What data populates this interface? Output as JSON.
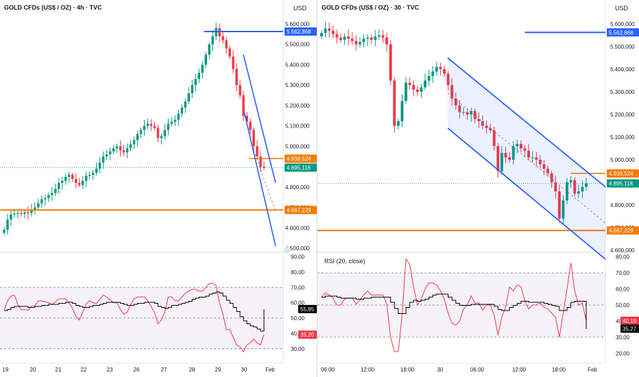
{
  "charts": [
    {
      "title": "GOLD CFDs (US$ / OZ) · 4h · TVC",
      "currency": "USD",
      "price_ticks": [
        "5.600,000",
        "5.500,000",
        "5.400,000",
        "5.300,000",
        "5.200,000",
        "5.100,000",
        "5.000,000",
        "4.900,000",
        "4.800,000",
        "4.700,000",
        "4.600,000",
        "4.500,000"
      ],
      "rsi_ticks": [
        "90,00",
        "80,00",
        "70,00",
        "60,00",
        "50,00",
        "40,00",
        "30,00"
      ],
      "time_ticks": [
        "19",
        "20",
        "21",
        "22",
        "23",
        "26",
        "27",
        "28",
        "29",
        "30",
        "Feb"
      ],
      "tags": [
        {
          "label": "5.562,868",
          "value": 5562.868,
          "color": "#2962ff",
          "kind": "line"
        },
        {
          "label": "4.939,524",
          "value": 4939.524,
          "color": "#f57c00",
          "kind": "line"
        },
        {
          "label": "4.895,118",
          "value": 4895.118,
          "color": "#089981",
          "kind": "price"
        },
        {
          "label": "4.687,229",
          "value": 4687.229,
          "color": "#f57c00",
          "kind": "line"
        }
      ],
      "rsi_tags": [
        {
          "label": "55,85",
          "value": 55.85,
          "color": "#000000"
        },
        {
          "label": "39,20",
          "value": 39.2,
          "color": "#f23645"
        }
      ],
      "rsi_title": "",
      "colors": {
        "up": "#089981",
        "down": "#f23645",
        "blue": "#2962ff",
        "orange": "#f57c00",
        "rsi": "#f23645",
        "signal": "#000000"
      }
    },
    {
      "title": "GOLD CFDs (US$ / OZ) · 30 · TVC",
      "currency": "USD",
      "price_ticks": [
        "5.600,000",
        "5.500,000",
        "5.400,000",
        "5.300,000",
        "5.200,000",
        "5.100,000",
        "5.000,000",
        "4.900,000",
        "4.800,000",
        "4.700,000",
        "4.600,000"
      ],
      "rsi_ticks": [
        "80,00",
        "70,00",
        "60,00",
        "50,00",
        "40,00",
        "30,00",
        "20,00"
      ],
      "time_ticks": [
        "06:00",
        "12:00",
        "18:00",
        "30",
        "06:00",
        "12:00",
        "18:00",
        "Feb"
      ],
      "tags": [
        {
          "label": "5.562,868",
          "value": 5562.868,
          "color": "#2962ff",
          "kind": "line"
        },
        {
          "label": "4.939,524",
          "value": 4939.524,
          "color": "#f57c00",
          "kind": "line"
        },
        {
          "label": "4.895,118",
          "value": 4895.118,
          "color": "#089981",
          "kind": "price"
        },
        {
          "label": "4.687,229",
          "value": 4687.229,
          "color": "#f57c00",
          "kind": "line"
        }
      ],
      "rsi_tags": [
        {
          "label": "40,19",
          "value": 40.19,
          "color": "#f23645"
        },
        {
          "label": "35,27",
          "value": 35.27,
          "color": "#000000"
        }
      ],
      "rsi_title": "RSI (20, close)",
      "colors": {
        "up": "#089981",
        "down": "#f23645",
        "blue": "#2962ff",
        "orange": "#f57c00",
        "rsi": "#f23645",
        "signal": "#000000"
      }
    }
  ],
  "chart_data": [
    {
      "type": "candlestick",
      "title": "GOLD CFDs (US$ / OZ) · 4h · TVC",
      "ylim": [
        4500,
        5600
      ],
      "x": [
        "19",
        "20",
        "21",
        "22",
        "23",
        "26",
        "27",
        "28",
        "29",
        "30",
        "Feb"
      ],
      "ohlc_close_approx": [
        4590,
        4640,
        4665,
        4670,
        4672,
        4668,
        4675,
        4672,
        4690,
        4700,
        4720,
        4740,
        4745,
        4760,
        4770,
        4790,
        4820,
        4830,
        4850,
        4860,
        4840,
        4820,
        4810,
        4830,
        4855,
        4860,
        4870,
        4890,
        4920,
        4950,
        4960,
        4975,
        4990,
        5000,
        4980,
        4970,
        4990,
        5010,
        5030,
        5060,
        5080,
        5100,
        5110,
        5100,
        5090,
        5040,
        5050,
        5080,
        5110,
        5120,
        5130,
        5160,
        5190,
        5220,
        5260,
        5300,
        5330,
        5360,
        5400,
        5450,
        5500,
        5540,
        5580,
        5540,
        5520,
        5480,
        5440,
        5380,
        5300,
        5250,
        5150,
        5120,
        5080,
        5000,
        4950,
        4900,
        4895
      ],
      "levels": {
        "resistance": 5562.868,
        "orange_upper": 4939.524,
        "orange_lower": 4687.229,
        "last_price": 4895.118
      },
      "rsi": {
        "ylim": [
          25,
          92
        ],
        "last": 39.2,
        "signal_last": 55.85
      }
    },
    {
      "type": "candlestick",
      "title": "GOLD CFDs (US$ / OZ) · 30 · TVC",
      "ylim": [
        4600,
        5600
      ],
      "x": [
        "06:00",
        "12:00",
        "18:00",
        "30",
        "06:00",
        "12:00",
        "18:00",
        "Feb"
      ],
      "ohlc_close_approx": [
        5560,
        5580,
        5570,
        5555,
        5540,
        5530,
        5545,
        5535,
        5525,
        5510,
        5520,
        5535,
        5540,
        5530,
        5545,
        5550,
        5540,
        5510,
        5350,
        5150,
        5170,
        5260,
        5340,
        5330,
        5310,
        5300,
        5320,
        5350,
        5370,
        5390,
        5410,
        5400,
        5380,
        5330,
        5270,
        5240,
        5210,
        5210,
        5200,
        5215,
        5180,
        5170,
        5150,
        5140,
        5130,
        5060,
        4950,
        5030,
        5010,
        5000,
        5060,
        5070,
        5050,
        5040,
        5010,
        5010,
        5000,
        4980,
        4960,
        4940,
        4900,
        4860,
        4740,
        4820,
        4900,
        4910,
        4850,
        4860,
        4880,
        4895
      ],
      "levels": {
        "resistance": 5562.868,
        "orange_upper": 4939.524,
        "orange_lower": 4687.229,
        "last_price": 4895.118
      },
      "rsi": {
        "title": "RSI (20, close)",
        "ylim": [
          18,
          82
        ],
        "last": 40.19,
        "signal_last": 35.27
      }
    }
  ]
}
